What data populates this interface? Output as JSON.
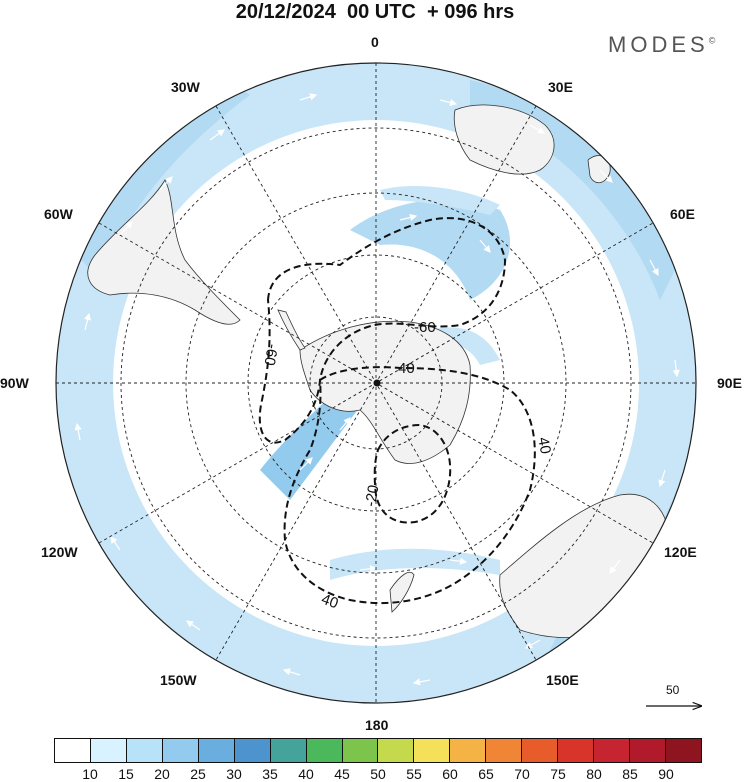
{
  "title": "20/12/2024  00 UTC  + 096 hrs",
  "brand": "MODES",
  "brand_mark": "©",
  "longitude_labels": [
    "0",
    "30E",
    "60E",
    "90E",
    "120E",
    "150E",
    "180",
    "150W",
    "120W",
    "90W",
    "60W",
    "30W"
  ],
  "contour_labels": [
    "-60",
    "-60",
    "40",
    "40",
    "-20",
    "40"
  ],
  "vector_reference": "50",
  "colorbar": {
    "colors": [
      "#ffffff",
      "#d9f2ff",
      "#b8e2f8",
      "#92cbee",
      "#6aaee0",
      "#4d94cf",
      "#44a39a",
      "#4cb85c",
      "#7cc44c",
      "#c4d94c",
      "#f5e05a",
      "#f5b245",
      "#f08535",
      "#e85c2c",
      "#d9342a",
      "#c72431",
      "#b01a2a",
      "#8e1420"
    ],
    "ticks": [
      "10",
      "15",
      "20",
      "25",
      "30",
      "35",
      "40",
      "45",
      "50",
      "55",
      "60",
      "65",
      "70",
      "75",
      "80",
      "85",
      "90"
    ]
  },
  "map": {
    "projection": "south-polar-stereographic",
    "land_color": "#f2f2f2",
    "wind_shading_color": "#c8e6f7",
    "contour_style": "dashed-black"
  }
}
